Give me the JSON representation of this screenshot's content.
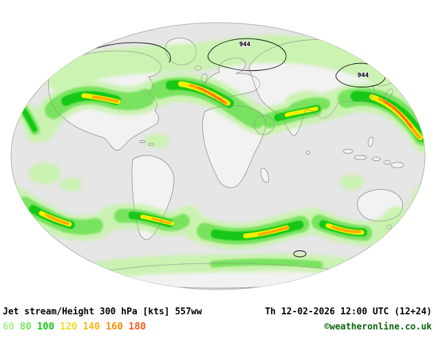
{
  "footer": {
    "product_label": "Jet stream/Height 300 hPa [kts] 557ww",
    "valid_time": "Th 12-02-2026 12:00 UTC (12+24)",
    "copyright": "©weatheronline.co.uk"
  },
  "legend": {
    "values": [
      {
        "label": "60",
        "color": "#aaf08c"
      },
      {
        "label": "80",
        "color": "#78e65a"
      },
      {
        "label": "100",
        "color": "#1ec81e"
      },
      {
        "label": "120",
        "color": "#f0dc1e"
      },
      {
        "label": "140",
        "color": "#ffb414"
      },
      {
        "label": "160",
        "color": "#ff8c0a"
      },
      {
        "label": "180",
        "color": "#ff5a1e"
      }
    ]
  },
  "map": {
    "projection": "elliptical world map",
    "band_colors": {
      "light_green": "#c9f3ae",
      "green": "#79e35f",
      "strong_green": "#18c818",
      "yellow": "#f0f000",
      "orange": "#ffaa00",
      "red_orange": "#ff6414"
    },
    "contour_labels": [
      {
        "text": "944"
      },
      {
        "text": "944"
      }
    ]
  }
}
